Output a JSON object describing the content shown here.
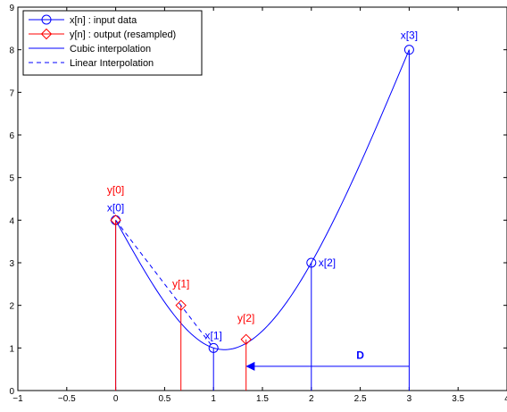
{
  "chart_data": {
    "type": "line",
    "title": "",
    "xlabel": "",
    "ylabel": "",
    "xlim": [
      -1,
      4
    ],
    "ylim": [
      0,
      9
    ],
    "xticks": [
      -1,
      -0.5,
      0,
      0.5,
      1,
      1.5,
      2,
      2.5,
      3,
      3.5,
      4
    ],
    "xtick_labels": [
      "−1",
      "−0.5",
      "0",
      "0.5",
      "1",
      "1.5",
      "2",
      "2.5",
      "3",
      "3.5",
      "4"
    ],
    "yticks": [
      0,
      1,
      2,
      3,
      4,
      5,
      6,
      7,
      8,
      9
    ],
    "ytick_labels": [
      "0",
      "1",
      "2",
      "3",
      "4",
      "5",
      "6",
      "7",
      "8",
      "9"
    ],
    "grid": false,
    "legend_position": "top-left",
    "colors": {
      "input": "#0000ff",
      "output": "#ff0000"
    },
    "series": [
      {
        "name": "x[n] : input data",
        "style": "stem-circle",
        "color": "#0000ff",
        "x": [
          0,
          1,
          2,
          3
        ],
        "y": [
          4,
          1,
          3,
          8
        ],
        "point_labels": [
          "x[0]",
          "x[1]",
          "x[2]",
          "x[3]"
        ]
      },
      {
        "name": "y[n] : output (resampled)",
        "style": "stem-diamond",
        "color": "#ff0000",
        "x": [
          0,
          0.667,
          1.333
        ],
        "y": [
          4,
          2,
          1.2
        ],
        "point_labels": [
          "y[0]",
          "y[1]",
          "y[2]"
        ]
      },
      {
        "name": "Cubic interpolation",
        "style": "solid",
        "color": "#0000ff",
        "x": [
          0,
          0.25,
          0.5,
          0.75,
          1,
          1.25,
          1.5,
          1.75,
          2,
          2.25,
          2.5,
          2.75,
          3
        ],
        "y": [
          4,
          2.82,
          1.9,
          1.28,
          1.0,
          1.09,
          1.56,
          2.25,
          3.0,
          3.85,
          4.96,
          6.36,
          8.0
        ]
      },
      {
        "name": "Linear Interpolation",
        "style": "dashed",
        "color": "#0000ff",
        "x": [
          0,
          1
        ],
        "y": [
          4,
          1
        ]
      }
    ],
    "annotations": [
      {
        "text": "D",
        "x": 2.5,
        "y": 0.75,
        "color": "#0000ff"
      }
    ],
    "arrow": {
      "from": [
        3,
        0.57
      ],
      "to": [
        1.33,
        0.57
      ],
      "color": "#0000ff"
    }
  }
}
